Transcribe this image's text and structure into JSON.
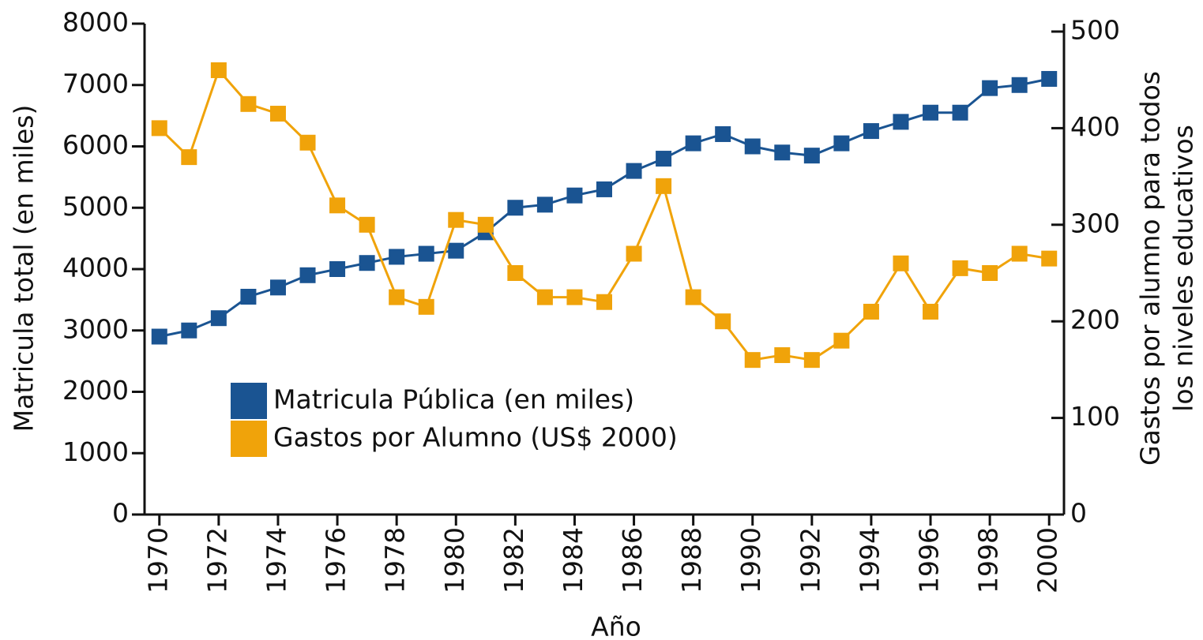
{
  "chart_data": {
    "type": "line",
    "xlabel": "Año",
    "ylabel": "Matricula total (en miles)",
    "y2label": [
      "Gastos por alumno para todos",
      "los niveles educativos"
    ],
    "x": [
      1970,
      1971,
      1972,
      1973,
      1974,
      1975,
      1976,
      1977,
      1978,
      1979,
      1980,
      1981,
      1982,
      1983,
      1984,
      1985,
      1986,
      1987,
      1988,
      1989,
      1990,
      1991,
      1992,
      1993,
      1994,
      1995,
      1996,
      1997,
      1998,
      1999,
      2000
    ],
    "xlim": [
      1969.5,
      2000.5
    ],
    "xticks": [
      1970,
      1972,
      1974,
      1976,
      1978,
      1980,
      1982,
      1984,
      1986,
      1988,
      1990,
      1992,
      1994,
      1996,
      1998,
      2000
    ],
    "ylim": [
      0,
      8000
    ],
    "yticks": [
      0,
      1000,
      2000,
      3000,
      4000,
      5000,
      6000,
      7000,
      8000
    ],
    "y2lim": [
      0,
      500
    ],
    "y2ticks": [
      0,
      100,
      200,
      300,
      400,
      500
    ],
    "series": [
      {
        "name": "Matricula Pública (en miles)",
        "color": "#1a5492",
        "values": [
          2900,
          3000,
          3200,
          3550,
          3700,
          3900,
          4000,
          4100,
          4200,
          4250,
          4300,
          4600,
          5000,
          5050,
          5200,
          5300,
          5600,
          5800,
          6050,
          6200,
          6000,
          5900,
          5850,
          6050,
          6250,
          6400,
          6550,
          6550,
          6950,
          7000,
          7100
        ]
      },
      {
        "name": "Gastos por Alumno (US$ 2000)",
        "color": "#f0a30a",
        "axis": "y2",
        "values": [
          400,
          370,
          460,
          425,
          415,
          385,
          320,
          300,
          225,
          215,
          305,
          300,
          250,
          225,
          225,
          220,
          270,
          340,
          225,
          200,
          160,
          165,
          160,
          180,
          210,
          260,
          210,
          255,
          250,
          270,
          265
        ]
      }
    ]
  }
}
